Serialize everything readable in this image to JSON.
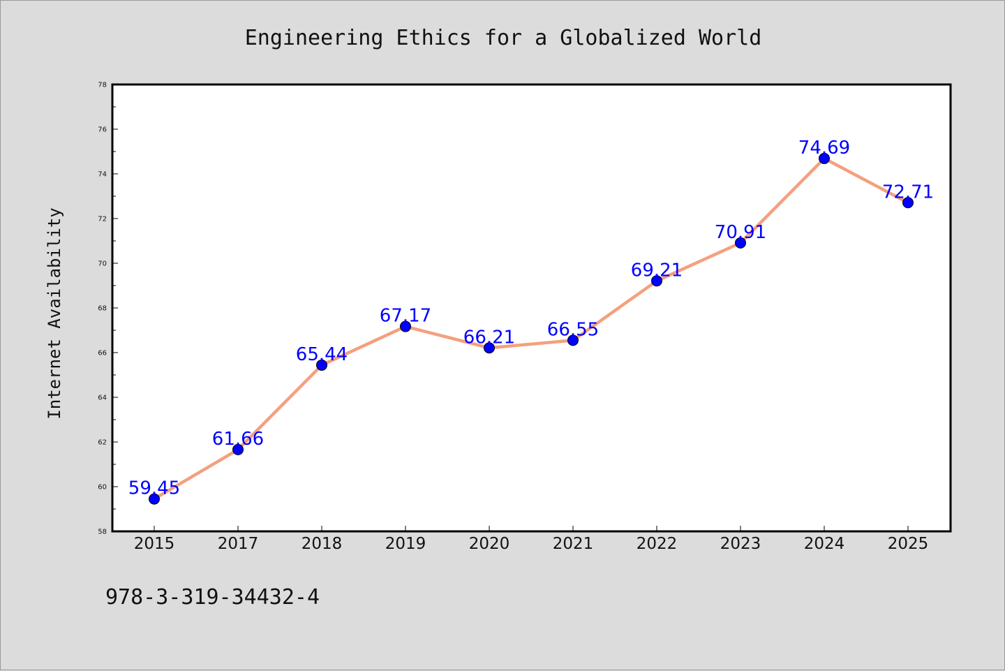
{
  "chart_data": {
    "type": "line",
    "title": "Engineering Ethics for a Globalized World",
    "xlabel": "",
    "ylabel": "Internet Availability",
    "categories": [
      "2015",
      "2017",
      "2018",
      "2019",
      "2020",
      "2021",
      "2022",
      "2023",
      "2024",
      "2025"
    ],
    "series": [
      {
        "values": [
          59.45,
          61.66,
          65.44,
          67.17,
          66.21,
          66.55,
          69.21,
          70.91,
          74.69,
          72.71
        ],
        "labels": [
          "59.45",
          "61.66",
          "65.44",
          "67.17",
          "66.21",
          "66.55",
          "69.21",
          "70.91",
          "74.69",
          "72.71"
        ],
        "line_color": "#f4a07e",
        "marker_color": "#0000ff"
      }
    ],
    "ylim": [
      58,
      78
    ],
    "yticks": [
      58,
      60,
      62,
      64,
      66,
      68,
      70,
      72,
      74,
      76,
      78
    ],
    "grid": false,
    "legend": "none"
  },
  "footer": {
    "isbn": "978-3-319-34432-4"
  }
}
